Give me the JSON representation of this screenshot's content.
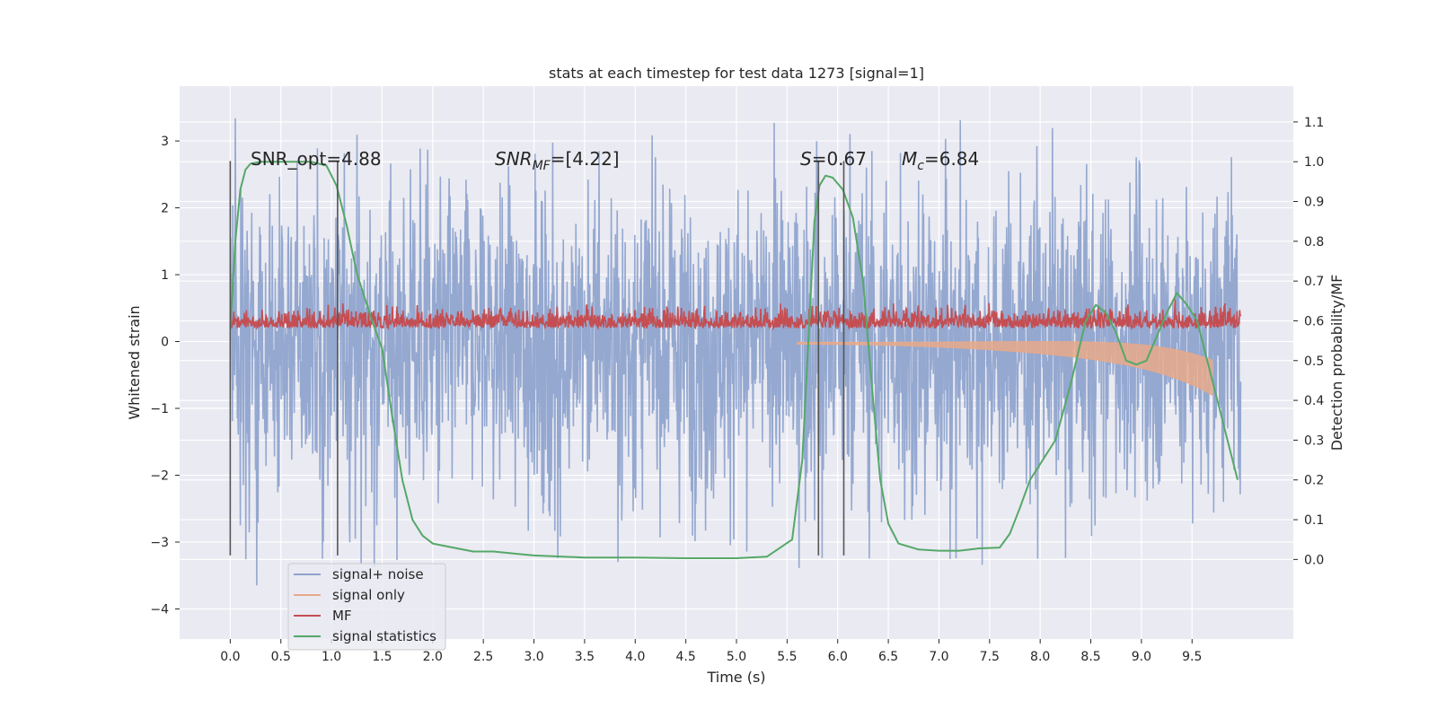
{
  "chart_data": {
    "type": "line",
    "title": "stats at each timestep for test data 1273 [signal=1]",
    "xlabel": "Time (s)",
    "ylabel": "Whitened strain",
    "y2label": "Detection probability/MF",
    "xlim": [
      -0.5,
      10.5
    ],
    "ylim": [
      -4.45,
      3.82
    ],
    "y2lim": [
      -0.2,
      1.19
    ],
    "x_ticks": [
      "0.0",
      "0.5",
      "1.0",
      "1.5",
      "2.0",
      "2.5",
      "3.0",
      "3.5",
      "4.0",
      "4.5",
      "5.0",
      "5.5",
      "6.0",
      "6.5",
      "7.0",
      "7.5",
      "8.0",
      "8.5",
      "9.0",
      "9.5"
    ],
    "y_ticks": [
      "3",
      "2",
      "1",
      "0",
      "−1",
      "−2",
      "−3",
      "−4"
    ],
    "y2_ticks": [
      "1.1",
      "1.0",
      "0.9",
      "0.8",
      "0.7",
      "0.6",
      "0.5",
      "0.4",
      "0.3",
      "0.2",
      "0.1",
      "0.0"
    ],
    "grid": true,
    "legend_position": "lower-left",
    "annotations": {
      "snr_opt": "SNR_opt=4.88",
      "snr_mf_main": "SNR",
      "snr_mf_sub": "MF",
      "snr_mf_rest": "=[4.22]",
      "s_main": "S",
      "s_rest": "=0.67",
      "mc_main": "M",
      "mc_sub": "c",
      "mc_rest": "=6.84"
    },
    "vertical_lines_x": [
      0.0,
      1.06,
      5.81,
      6.06
    ],
    "vertical_lines_ylim": [
      -3.2,
      2.7
    ],
    "series": [
      {
        "name": "signal+ noise",
        "color": "#8fa4cd",
        "kind": "noise",
        "x_range": [
          0.0,
          9.98
        ],
        "mean": 0.0,
        "envelope": 2.2,
        "max": 3.5,
        "min": -4.0
      },
      {
        "name": "signal only",
        "color": "#e8a98a",
        "kind": "band",
        "x_range": [
          5.6,
          9.7
        ],
        "end_value": -0.55
      },
      {
        "name": "MF",
        "color": "#c44e52",
        "kind": "noise",
        "x_range": [
          0.0,
          9.98
        ],
        "mean": 0.25,
        "envelope": 0.35,
        "max": 0.85,
        "min": 0.0
      },
      {
        "name": "signal statistics",
        "color": "#55a868",
        "kind": "line",
        "axis": "right",
        "x": [
          0.0,
          0.05,
          0.1,
          0.15,
          0.2,
          0.3,
          0.5,
          0.8,
          0.95,
          1.05,
          1.15,
          1.25,
          1.4,
          1.5,
          1.6,
          1.7,
          1.8,
          1.9,
          2.0,
          2.2,
          2.4,
          2.6,
          2.8,
          3.0,
          3.5,
          4.0,
          4.5,
          5.0,
          5.3,
          5.55,
          5.65,
          5.72,
          5.77,
          5.82,
          5.88,
          5.95,
          6.05,
          6.15,
          6.25,
          6.35,
          6.42,
          6.5,
          6.6,
          6.8,
          7.0,
          7.2,
          7.4,
          7.6,
          7.7,
          7.8,
          7.9,
          8.0,
          8.15,
          8.3,
          8.45,
          8.55,
          8.65,
          8.75,
          8.85,
          8.95,
          9.05,
          9.15,
          9.25,
          9.35,
          9.45,
          9.55,
          9.65,
          9.75,
          9.85,
          9.95
        ],
        "values": [
          0.58,
          0.8,
          0.93,
          0.98,
          0.995,
          1.0,
          1.0,
          1.0,
          0.99,
          0.94,
          0.84,
          0.72,
          0.6,
          0.53,
          0.36,
          0.2,
          0.1,
          0.06,
          0.04,
          0.03,
          0.02,
          0.02,
          0.015,
          0.01,
          0.005,
          0.005,
          0.003,
          0.003,
          0.007,
          0.05,
          0.25,
          0.6,
          0.85,
          0.94,
          0.965,
          0.96,
          0.93,
          0.86,
          0.7,
          0.4,
          0.2,
          0.09,
          0.04,
          0.025,
          0.022,
          0.022,
          0.028,
          0.03,
          0.065,
          0.13,
          0.2,
          0.24,
          0.3,
          0.44,
          0.6,
          0.64,
          0.62,
          0.57,
          0.5,
          0.49,
          0.5,
          0.56,
          0.62,
          0.67,
          0.64,
          0.6,
          0.5,
          0.4,
          0.3,
          0.2
        ]
      }
    ]
  }
}
